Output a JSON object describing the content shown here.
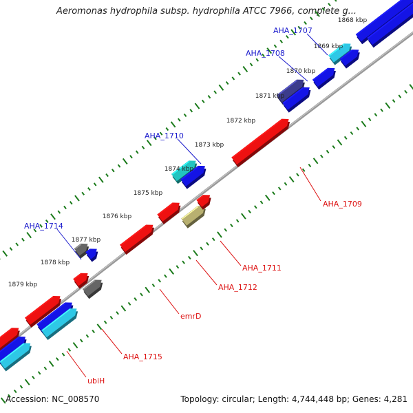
{
  "title": "Aeromonas hydrophila subsp. hydrophila ATCC 7966, complete g...",
  "footer": {
    "accession": "Accession: NC_008570",
    "summary": "Topology: circular; Length: 4,744,448 bp; Genes: 4,281"
  },
  "colors": {
    "backbone": "#999999",
    "tick": "#1a7a1a",
    "tick_label": "#222222",
    "forward_label": "#1a1acc",
    "reverse_label": "#dd1111",
    "blue": "#1414e6",
    "navy": "#3c3c8c",
    "cyan": "#2ec8e6",
    "teal": "#22c4c0",
    "red": "#ee1111",
    "gray": "#666666",
    "olive": "#b8b070"
  },
  "ticks": [
    "1868 kbp",
    "1869 kbp",
    "1870 kbp",
    "1871 kbp",
    "1872 kbp",
    "1873 kbp",
    "1874 kbp",
    "1875 kbp",
    "1876 kbp",
    "1877 kbp",
    "1878 kbp",
    "1879 kbp"
  ],
  "gene_labels": {
    "forward": [
      "AHA_1707",
      "AHA_1708",
      "AHA_1710",
      "AHA_1714"
    ],
    "reverse": [
      "AHA_1709",
      "AHA_1711",
      "AHA_1712",
      "emrD",
      "AHA_1715",
      "ubiH"
    ]
  }
}
